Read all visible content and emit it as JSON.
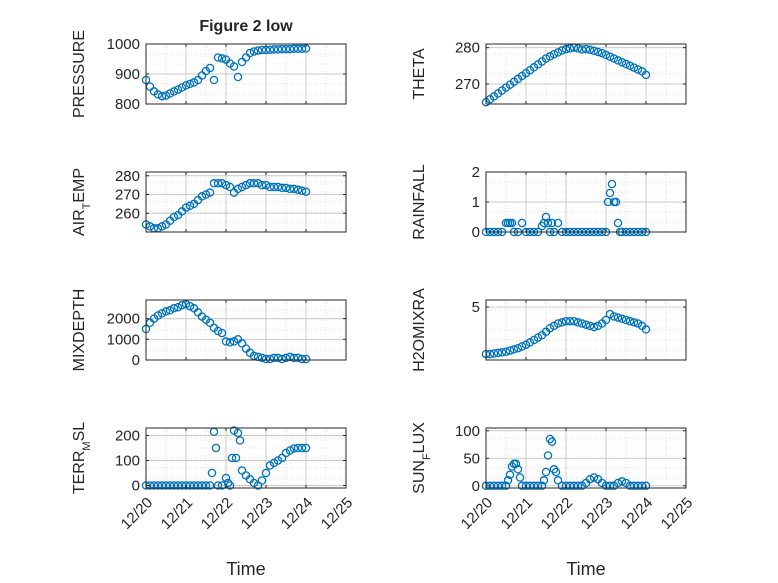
{
  "figure_title": "Figure 2 low",
  "colors": {
    "marker": "#0072BD",
    "axis": "#262626",
    "grid": "#c8c8c8",
    "minor_grid": "#d4d4d4"
  },
  "chart_data": [
    {
      "type": "scatter",
      "position": "top-left",
      "title": "Figure 2 low",
      "ylabel": "PRESSURE",
      "ylabel_sub": "",
      "xlabel": "",
      "show_xticks": false,
      "grid": true,
      "minor_grid": true,
      "xlim": [
        0,
        5
      ],
      "ylim": [
        800,
        1000
      ],
      "yticks": [
        800,
        900,
        1000
      ],
      "ytick_labels": [
        "800",
        "900",
        "1000"
      ],
      "series": [
        {
          "name": "",
          "x": [
            0,
            0.1,
            0.2,
            0.3,
            0.4,
            0.5,
            0.6,
            0.7,
            0.8,
            0.9,
            1,
            1.1,
            1.2,
            1.3,
            1.4,
            1.5,
            1.6,
            1.7,
            1.8,
            1.9,
            2,
            2.1,
            2.2,
            2.3,
            2.4,
            2.5,
            2.6,
            2.7,
            2.8,
            2.9,
            3,
            3.1,
            3.2,
            3.3,
            3.4,
            3.5,
            3.6,
            3.7,
            3.8,
            3.9,
            4
          ],
          "y": [
            880,
            858,
            842,
            832,
            826,
            828,
            835,
            842,
            848,
            855,
            862,
            867,
            872,
            880,
            895,
            910,
            920,
            880,
            955,
            952,
            948,
            935,
            925,
            890,
            940,
            955,
            970,
            975,
            978,
            980,
            980,
            981,
            982,
            982,
            983,
            983,
            983,
            984,
            984,
            984,
            985
          ]
        }
      ]
    },
    {
      "type": "scatter",
      "position": "top-right",
      "title": "",
      "ylabel": "THETA",
      "ylabel_sub": "",
      "xlabel": "",
      "show_xticks": false,
      "grid": true,
      "minor_grid": true,
      "xlim": [
        0,
        5
      ],
      "ylim": [
        264.5,
        281
      ],
      "yticks": [
        270,
        280
      ],
      "ytick_labels": [
        "270",
        "280"
      ],
      "series": [
        {
          "name": "",
          "x": [
            0,
            0.1,
            0.2,
            0.3,
            0.4,
            0.5,
            0.6,
            0.7,
            0.8,
            0.9,
            1,
            1.1,
            1.2,
            1.3,
            1.4,
            1.5,
            1.6,
            1.7,
            1.8,
            1.9,
            2,
            2.1,
            2.2,
            2.3,
            2.4,
            2.5,
            2.6,
            2.7,
            2.8,
            2.9,
            3,
            3.1,
            3.2,
            3.3,
            3.4,
            3.5,
            3.6,
            3.7,
            3.8,
            3.9,
            4
          ],
          "y": [
            265,
            265.8,
            266.6,
            267.4,
            268.2,
            269,
            269.8,
            270.6,
            271.4,
            272.2,
            273,
            273.8,
            274.6,
            275.4,
            276.2,
            277,
            277.6,
            278.2,
            278.7,
            279.2,
            279.6,
            279.8,
            280,
            279.8,
            279.5,
            279.6,
            279.4,
            279.1,
            278.8,
            278.5,
            278,
            277.5,
            277,
            276.5,
            276,
            275.5,
            275,
            274.5,
            274,
            273.5,
            272.5
          ]
        }
      ]
    },
    {
      "type": "scatter",
      "position": "second-left",
      "title": "",
      "ylabel": "AIR",
      "ylabel_sub": "T",
      "ylabel_after": "EMP",
      "xlabel": "",
      "show_xticks": false,
      "grid": true,
      "minor_grid": true,
      "xlim": [
        0,
        5
      ],
      "ylim": [
        250,
        282
      ],
      "yticks": [
        260,
        270,
        280
      ],
      "ytick_labels": [
        "260",
        "270",
        "280"
      ],
      "series": [
        {
          "name": "",
          "x": [
            0,
            0.1,
            0.2,
            0.3,
            0.4,
            0.5,
            0.6,
            0.7,
            0.8,
            0.9,
            1,
            1.1,
            1.2,
            1.3,
            1.4,
            1.5,
            1.6,
            1.7,
            1.8,
            1.9,
            2,
            2.1,
            2.2,
            2.3,
            2.4,
            2.5,
            2.6,
            2.7,
            2.8,
            2.9,
            3,
            3.1,
            3.2,
            3.3,
            3.4,
            3.5,
            3.6,
            3.7,
            3.8,
            3.9,
            4
          ],
          "y": [
            254,
            253,
            252,
            252,
            253,
            254,
            256,
            258,
            259,
            261,
            263,
            264,
            265,
            267,
            269,
            270,
            271,
            276,
            276,
            276,
            275,
            274,
            271,
            273,
            274,
            275,
            276,
            276,
            276,
            275,
            275,
            274,
            274,
            274,
            273.5,
            273.5,
            273,
            273,
            272.5,
            272,
            271.5
          ]
        }
      ]
    },
    {
      "type": "scatter",
      "position": "second-right",
      "title": "",
      "ylabel": "RAINFALL",
      "ylabel_sub": "",
      "xlabel": "",
      "show_xticks": false,
      "grid": true,
      "minor_grid": true,
      "xlim": [
        0,
        5
      ],
      "ylim": [
        0,
        2
      ],
      "yticks": [
        0,
        1,
        2
      ],
      "ytick_labels": [
        "0",
        "1",
        "2"
      ],
      "series": [
        {
          "name": "",
          "x": [
            0,
            0.1,
            0.2,
            0.3,
            0.4,
            0.5,
            0.55,
            0.6,
            0.65,
            0.7,
            0.8,
            0.9,
            1,
            1.1,
            1.2,
            1.3,
            1.4,
            1.45,
            1.5,
            1.55,
            1.6,
            1.65,
            1.7,
            1.8,
            1.9,
            2,
            2.1,
            2.2,
            2.3,
            2.4,
            2.5,
            2.6,
            2.7,
            2.8,
            2.9,
            3,
            3.05,
            3.1,
            3.15,
            3.2,
            3.25,
            3.3,
            3.35,
            3.4,
            3.5,
            3.6,
            3.7,
            3.8,
            3.9,
            4
          ],
          "y": [
            0,
            0,
            0,
            0,
            0,
            0.3,
            0.3,
            0.3,
            0.3,
            0,
            0,
            0.3,
            0,
            0,
            0,
            0,
            0.2,
            0.3,
            0.5,
            0.3,
            0,
            0.3,
            0,
            0.3,
            0,
            0,
            0,
            0,
            0,
            0,
            0,
            0,
            0,
            0,
            0,
            0,
            1.0,
            1.3,
            1.6,
            1.0,
            1.0,
            0.3,
            0,
            0,
            0,
            0,
            0,
            0,
            0,
            0
          ]
        }
      ]
    },
    {
      "type": "scatter",
      "position": "third-left",
      "title": "",
      "ylabel": "MIXDEPTH",
      "ylabel_sub": "",
      "xlabel": "",
      "show_xticks": false,
      "grid": true,
      "minor_grid": true,
      "xlim": [
        0,
        5
      ],
      "ylim": [
        0,
        2900
      ],
      "yticks": [
        0,
        1000,
        2000
      ],
      "ytick_labels": [
        "0",
        "1000",
        "2000"
      ],
      "series": [
        {
          "name": "",
          "x": [
            0,
            0.1,
            0.2,
            0.3,
            0.4,
            0.5,
            0.6,
            0.7,
            0.8,
            0.9,
            1,
            1.1,
            1.2,
            1.3,
            1.4,
            1.5,
            1.6,
            1.7,
            1.8,
            1.9,
            2,
            2.1,
            2.2,
            2.3,
            2.4,
            2.5,
            2.6,
            2.7,
            2.8,
            2.9,
            3,
            3.1,
            3.2,
            3.3,
            3.4,
            3.5,
            3.6,
            3.7,
            3.8,
            3.9,
            4
          ],
          "y": [
            1500,
            1800,
            2000,
            2150,
            2250,
            2350,
            2400,
            2500,
            2550,
            2650,
            2700,
            2600,
            2500,
            2300,
            2100,
            1950,
            1800,
            1550,
            1400,
            1300,
            900,
            850,
            900,
            1000,
            800,
            550,
            350,
            200,
            150,
            100,
            50,
            50,
            100,
            100,
            50,
            100,
            150,
            100,
            100,
            50,
            50
          ]
        }
      ]
    },
    {
      "type": "scatter",
      "position": "third-right",
      "title": "",
      "ylabel": "H2OMIXRA",
      "ylabel_sub": "",
      "xlabel": "",
      "show_xticks": false,
      "grid": true,
      "minor_grid": true,
      "xlim": [
        0,
        5
      ],
      "ylim": [
        0.5,
        5.6
      ],
      "yticks": [
        5
      ],
      "ytick_labels": [
        "5"
      ],
      "series": [
        {
          "name": "",
          "x": [
            0,
            0.1,
            0.2,
            0.3,
            0.4,
            0.5,
            0.6,
            0.7,
            0.8,
            0.9,
            1,
            1.1,
            1.2,
            1.3,
            1.4,
            1.5,
            1.6,
            1.7,
            1.8,
            1.9,
            2,
            2.1,
            2.2,
            2.3,
            2.4,
            2.5,
            2.6,
            2.7,
            2.8,
            2.9,
            3,
            3.1,
            3.2,
            3.3,
            3.4,
            3.5,
            3.6,
            3.7,
            3.8,
            3.9,
            4
          ],
          "y": [
            1.0,
            1.0,
            1.05,
            1.1,
            1.15,
            1.2,
            1.3,
            1.4,
            1.5,
            1.65,
            1.8,
            2.0,
            2.2,
            2.4,
            2.6,
            2.9,
            3.2,
            3.4,
            3.6,
            3.7,
            3.8,
            3.8,
            3.8,
            3.7,
            3.6,
            3.5,
            3.4,
            3.3,
            3.4,
            3.6,
            3.9,
            4.4,
            4.2,
            4.1,
            4.0,
            3.9,
            3.8,
            3.7,
            3.6,
            3.4,
            3.1
          ]
        }
      ]
    },
    {
      "type": "scatter",
      "position": "bottom-left",
      "title": "",
      "ylabel": "TERR",
      "ylabel_sub": "M",
      "ylabel_after": "SL",
      "xlabel": "Time",
      "show_xticks": true,
      "grid": true,
      "minor_grid": true,
      "xlim": [
        0,
        5
      ],
      "ylim": [
        -10,
        230
      ],
      "yticks": [
        0,
        100,
        200
      ],
      "ytick_labels": [
        "0",
        "100",
        "200"
      ],
      "xticks": [
        0,
        1,
        2,
        3,
        4,
        5
      ],
      "xtick_labels": [
        "12/20",
        "12/21",
        "12/22",
        "12/23",
        "12/24",
        "12/25"
      ],
      "series": [
        {
          "name": "",
          "x": [
            0,
            0.1,
            0.2,
            0.3,
            0.4,
            0.5,
            0.6,
            0.7,
            0.8,
            0.9,
            1,
            1.1,
            1.2,
            1.3,
            1.4,
            1.5,
            1.6,
            1.65,
            1.7,
            1.75,
            1.8,
            1.9,
            2,
            2.05,
            2.1,
            2.15,
            2.2,
            2.25,
            2.3,
            2.35,
            2.4,
            2.5,
            2.6,
            2.7,
            2.8,
            2.9,
            3,
            3.1,
            3.2,
            3.3,
            3.4,
            3.5,
            3.6,
            3.7,
            3.8,
            3.9,
            4
          ],
          "y": [
            0,
            0,
            0,
            0,
            0,
            0,
            0,
            0,
            0,
            0,
            0,
            0,
            0,
            0,
            0,
            0,
            0,
            50,
            215,
            150,
            0,
            0,
            30,
            10,
            0,
            110,
            220,
            110,
            210,
            180,
            60,
            40,
            25,
            10,
            0,
            20,
            50,
            80,
            90,
            100,
            110,
            130,
            140,
            148,
            150,
            150,
            150
          ]
        }
      ]
    },
    {
      "type": "scatter",
      "position": "bottom-right",
      "title": "",
      "ylabel": "SUN",
      "ylabel_sub": "F",
      "ylabel_after": "LUX",
      "xlabel": "Time",
      "show_xticks": true,
      "grid": true,
      "minor_grid": true,
      "xlim": [
        0,
        5
      ],
      "ylim": [
        -4,
        105
      ],
      "yticks": [
        0,
        50,
        100
      ],
      "ytick_labels": [
        "0",
        "50",
        "100"
      ],
      "xticks": [
        0,
        1,
        2,
        3,
        4,
        5
      ],
      "xtick_labels": [
        "12/20",
        "12/21",
        "12/22",
        "12/23",
        "12/24",
        "12/25"
      ],
      "series": [
        {
          "name": "",
          "x": [
            0,
            0.1,
            0.2,
            0.3,
            0.4,
            0.5,
            0.55,
            0.6,
            0.65,
            0.7,
            0.75,
            0.8,
            0.85,
            0.9,
            1,
            1.1,
            1.2,
            1.3,
            1.4,
            1.45,
            1.5,
            1.55,
            1.6,
            1.65,
            1.7,
            1.75,
            1.8,
            1.9,
            2,
            2.1,
            2.2,
            2.3,
            2.4,
            2.5,
            2.6,
            2.7,
            2.8,
            2.9,
            3,
            3.1,
            3.2,
            3.3,
            3.4,
            3.5,
            3.6,
            3.7,
            3.8,
            3.9,
            4
          ],
          "y": [
            0,
            0,
            0,
            0,
            0,
            0,
            10,
            20,
            35,
            40,
            40,
            30,
            15,
            0,
            0,
            0,
            0,
            0,
            0,
            10,
            25,
            55,
            85,
            80,
            30,
            25,
            10,
            0,
            0,
            0,
            0,
            0,
            0,
            5,
            12,
            15,
            12,
            5,
            0,
            0,
            0,
            5,
            8,
            5,
            0,
            0,
            0,
            0,
            0
          ]
        }
      ]
    }
  ]
}
